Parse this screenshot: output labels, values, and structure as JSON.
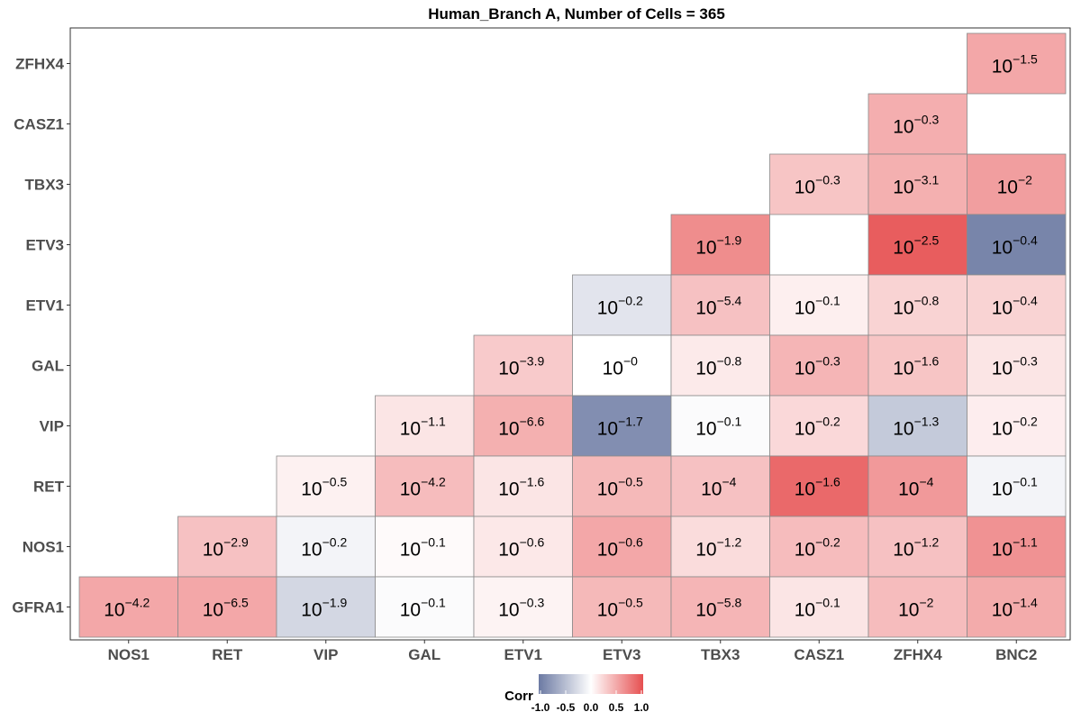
{
  "chart_data": {
    "type": "heatmap",
    "title": "Human_Branch A, Number of Cells = 365",
    "x_categories": [
      "NOS1",
      "RET",
      "VIP",
      "GAL",
      "ETV1",
      "ETV3",
      "TBX3",
      "CASZ1",
      "ZFHX4",
      "BNC2"
    ],
    "y_categories": [
      "ZFHX4",
      "CASZ1",
      "TBX3",
      "ETV3",
      "ETV1",
      "GAL",
      "VIP",
      "RET",
      "NOS1",
      "GFRA1"
    ],
    "legend": {
      "title": "Corr",
      "ticks": [
        "-1.0",
        "-0.5",
        "0.0",
        "0.5",
        "1.0"
      ],
      "colors": {
        "low": "#6c7aa3",
        "mid": "#ffffff",
        "high": "#e64f50"
      },
      "range": [
        -1,
        1
      ]
    },
    "cells": [
      {
        "y": "ZFHX4",
        "x": "BNC2",
        "corr": 0.5,
        "label": "−1.5"
      },
      {
        "y": "CASZ1",
        "x": "ZFHX4",
        "corr": 0.46,
        "label": "−0.3"
      },
      {
        "y": "TBX3",
        "x": "CASZ1",
        "corr": 0.33,
        "label": "−0.3"
      },
      {
        "y": "TBX3",
        "x": "ZFHX4",
        "corr": 0.45,
        "label": "−3.1"
      },
      {
        "y": "TBX3",
        "x": "BNC2",
        "corr": 0.55,
        "label": "−2"
      },
      {
        "y": "ETV3",
        "x": "TBX3",
        "corr": 0.65,
        "label": "−1.9"
      },
      {
        "y": "ETV3",
        "x": "ZFHX4",
        "corr": 0.92,
        "label": "−2.5"
      },
      {
        "y": "ETV3",
        "x": "BNC2",
        "corr": -0.92,
        "label": "−0.4"
      },
      {
        "y": "ETV1",
        "x": "ETV3",
        "corr": -0.2,
        "label": "−0.2"
      },
      {
        "y": "ETV1",
        "x": "TBX3",
        "corr": 0.35,
        "label": "−5.4"
      },
      {
        "y": "ETV1",
        "x": "CASZ1",
        "corr": 0.09,
        "label": "−0.1"
      },
      {
        "y": "ETV1",
        "x": "ZFHX4",
        "corr": 0.25,
        "label": "−0.8"
      },
      {
        "y": "ETV1",
        "x": "BNC2",
        "corr": 0.25,
        "label": "−0.4"
      },
      {
        "y": "GAL",
        "x": "ETV1",
        "corr": 0.3,
        "label": "−3.9"
      },
      {
        "y": "GAL",
        "x": "ETV3",
        "corr": 0.0,
        "label": "−0"
      },
      {
        "y": "GAL",
        "x": "TBX3",
        "corr": 0.12,
        "label": "−0.8"
      },
      {
        "y": "GAL",
        "x": "CASZ1",
        "corr": 0.42,
        "label": "−0.3"
      },
      {
        "y": "GAL",
        "x": "ZFHX4",
        "corr": 0.33,
        "label": "−1.6"
      },
      {
        "y": "GAL",
        "x": "BNC2",
        "corr": 0.15,
        "label": "−0.3"
      },
      {
        "y": "VIP",
        "x": "GAL",
        "corr": 0.15,
        "label": "−1.1"
      },
      {
        "y": "VIP",
        "x": "ETV1",
        "corr": 0.45,
        "label": "−6.6"
      },
      {
        "y": "VIP",
        "x": "ETV3",
        "corr": -0.85,
        "label": "−1.7"
      },
      {
        "y": "VIP",
        "x": "TBX3",
        "corr": -0.03,
        "label": "−0.1"
      },
      {
        "y": "VIP",
        "x": "CASZ1",
        "corr": 0.22,
        "label": "−0.2"
      },
      {
        "y": "VIP",
        "x": "ZFHX4",
        "corr": -0.4,
        "label": "−1.3"
      },
      {
        "y": "VIP",
        "x": "BNC2",
        "corr": 0.1,
        "label": "−0.2"
      },
      {
        "y": "RET",
        "x": "VIP",
        "corr": 0.08,
        "label": "−0.5"
      },
      {
        "y": "RET",
        "x": "GAL",
        "corr": 0.38,
        "label": "−4.2"
      },
      {
        "y": "RET",
        "x": "ETV1",
        "corr": 0.15,
        "label": "−1.6"
      },
      {
        "y": "RET",
        "x": "ETV3",
        "corr": 0.4,
        "label": "−0.5"
      },
      {
        "y": "RET",
        "x": "TBX3",
        "corr": 0.35,
        "label": "−4"
      },
      {
        "y": "RET",
        "x": "CASZ1",
        "corr": 0.85,
        "label": "−1.6"
      },
      {
        "y": "RET",
        "x": "ZFHX4",
        "corr": 0.58,
        "label": "−4"
      },
      {
        "y": "RET",
        "x": "BNC2",
        "corr": -0.08,
        "label": "−0.1"
      },
      {
        "y": "NOS1",
        "x": "RET",
        "corr": 0.35,
        "label": "−2.9"
      },
      {
        "y": "NOS1",
        "x": "VIP",
        "corr": -0.08,
        "label": "−0.2"
      },
      {
        "y": "NOS1",
        "x": "GAL",
        "corr": 0.03,
        "label": "−0.1"
      },
      {
        "y": "NOS1",
        "x": "ETV1",
        "corr": 0.13,
        "label": "−0.6"
      },
      {
        "y": "NOS1",
        "x": "ETV3",
        "corr": 0.5,
        "label": "−0.6"
      },
      {
        "y": "NOS1",
        "x": "TBX3",
        "corr": 0.2,
        "label": "−1.2"
      },
      {
        "y": "NOS1",
        "x": "CASZ1",
        "corr": 0.38,
        "label": "−0.2"
      },
      {
        "y": "NOS1",
        "x": "ZFHX4",
        "corr": 0.35,
        "label": "−1.2"
      },
      {
        "y": "NOS1",
        "x": "BNC2",
        "corr": 0.62,
        "label": "−1.1"
      },
      {
        "y": "GFRA1",
        "x": "NOS1",
        "corr": 0.5,
        "label": "−4.2"
      },
      {
        "y": "GFRA1",
        "x": "RET",
        "corr": 0.5,
        "label": "−6.5"
      },
      {
        "y": "GFRA1",
        "x": "VIP",
        "corr": -0.3,
        "label": "−1.9"
      },
      {
        "y": "GFRA1",
        "x": "GAL",
        "corr": -0.03,
        "label": "−0.1"
      },
      {
        "y": "GFRA1",
        "x": "ETV1",
        "corr": 0.07,
        "label": "−0.3"
      },
      {
        "y": "GFRA1",
        "x": "ETV3",
        "corr": 0.4,
        "label": "−0.5"
      },
      {
        "y": "GFRA1",
        "x": "TBX3",
        "corr": 0.42,
        "label": "−5.8"
      },
      {
        "y": "GFRA1",
        "x": "CASZ1",
        "corr": 0.15,
        "label": "−0.1"
      },
      {
        "y": "GFRA1",
        "x": "ZFHX4",
        "corr": 0.38,
        "label": "−2"
      },
      {
        "y": "GFRA1",
        "x": "BNC2",
        "corr": 0.48,
        "label": "−1.4"
      }
    ]
  }
}
